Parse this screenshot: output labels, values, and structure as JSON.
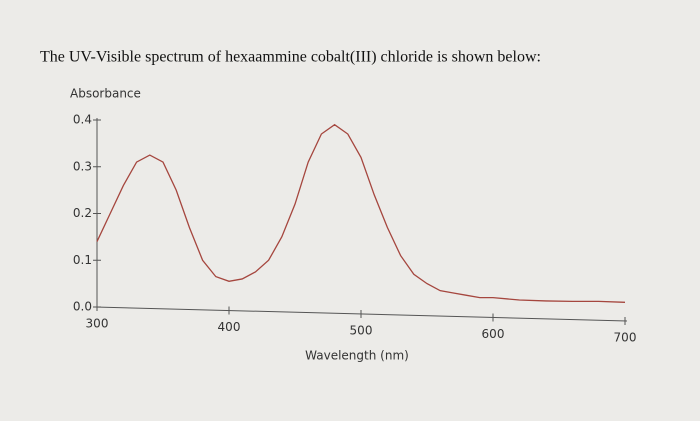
{
  "chart_data": {
    "type": "line",
    "title": "The UV-Visible spectrum of hexaammine cobalt(III) chloride is shown below:",
    "y_label": "Absorbance",
    "x_label": "Wavelength (nm)",
    "x": [
      300,
      310,
      320,
      330,
      340,
      350,
      360,
      370,
      380,
      390,
      400,
      410,
      420,
      430,
      440,
      450,
      460,
      470,
      480,
      490,
      500,
      510,
      520,
      530,
      540,
      550,
      560,
      570,
      580,
      590,
      600,
      620,
      640,
      660,
      680,
      700
    ],
    "series": [
      {
        "color": "#a5463e",
        "values": [
          0.14,
          0.2,
          0.26,
          0.31,
          0.325,
          0.31,
          0.25,
          0.17,
          0.1,
          0.065,
          0.055,
          0.06,
          0.075,
          0.1,
          0.15,
          0.22,
          0.31,
          0.37,
          0.39,
          0.37,
          0.32,
          0.24,
          0.17,
          0.11,
          0.07,
          0.05,
          0.035,
          0.03,
          0.025,
          0.02,
          0.02,
          0.015,
          0.013,
          0.012,
          0.012,
          0.01
        ]
      }
    ],
    "xlim": [
      300,
      700
    ],
    "ylim": [
      0,
      0.4
    ],
    "xticks": [
      300,
      400,
      500,
      600,
      700
    ],
    "yticks": [
      {
        "value": 0,
        "label": "0.0"
      },
      0.1,
      0.2,
      0.3,
      0.4
    ]
  }
}
